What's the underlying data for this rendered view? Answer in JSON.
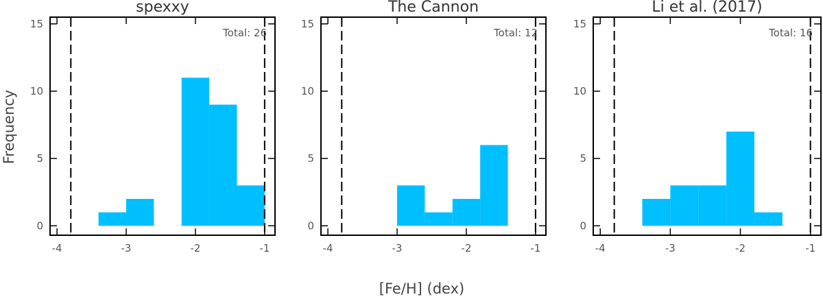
{
  "figure": {
    "ylabel": "Frequency",
    "xlabel": "[Fe/H] (dex)"
  },
  "chart_data": [
    {
      "type": "bar",
      "title": "spexxy",
      "annotation": "Total: 26",
      "bin_edges": [
        -3.4,
        -3.0,
        -2.6,
        -2.2,
        -1.8,
        -1.4,
        -1.0
      ],
      "values": [
        1,
        2,
        0,
        11,
        9,
        3
      ],
      "xlim": [
        -4.1,
        -0.85
      ],
      "ylim": [
        -0.7,
        15.5
      ],
      "xticks": [
        -4,
        -3,
        -2,
        -1
      ],
      "yticks": [
        0,
        5,
        10,
        15
      ],
      "reference_lines_x": [
        -3.8,
        -1.0
      ],
      "grid": false
    },
    {
      "type": "bar",
      "title": "The Cannon",
      "annotation": "Total: 12",
      "bin_edges": [
        -3.0,
        -2.6,
        -2.2,
        -1.8,
        -1.4
      ],
      "values": [
        3,
        1,
        2,
        6
      ],
      "xlim": [
        -4.1,
        -0.85
      ],
      "ylim": [
        -0.7,
        15.5
      ],
      "xticks": [
        -4,
        -3,
        -2,
        -1
      ],
      "yticks": [
        0,
        5,
        10,
        15
      ],
      "reference_lines_x": [
        -3.8,
        -1.0
      ],
      "grid": false
    },
    {
      "type": "bar",
      "title": "Li et al. (2017)",
      "annotation": "Total: 16",
      "bin_edges": [
        -3.4,
        -3.0,
        -2.6,
        -2.2,
        -1.8,
        -1.4
      ],
      "values": [
        2,
        3,
        3,
        7,
        1
      ],
      "xlim": [
        -4.1,
        -0.85
      ],
      "ylim": [
        -0.7,
        15.5
      ],
      "xticks": [
        -4,
        -3,
        -2,
        -1
      ],
      "yticks": [
        0,
        5,
        10,
        15
      ],
      "reference_lines_x": [
        -3.8,
        -1.0
      ],
      "grid": false
    }
  ]
}
